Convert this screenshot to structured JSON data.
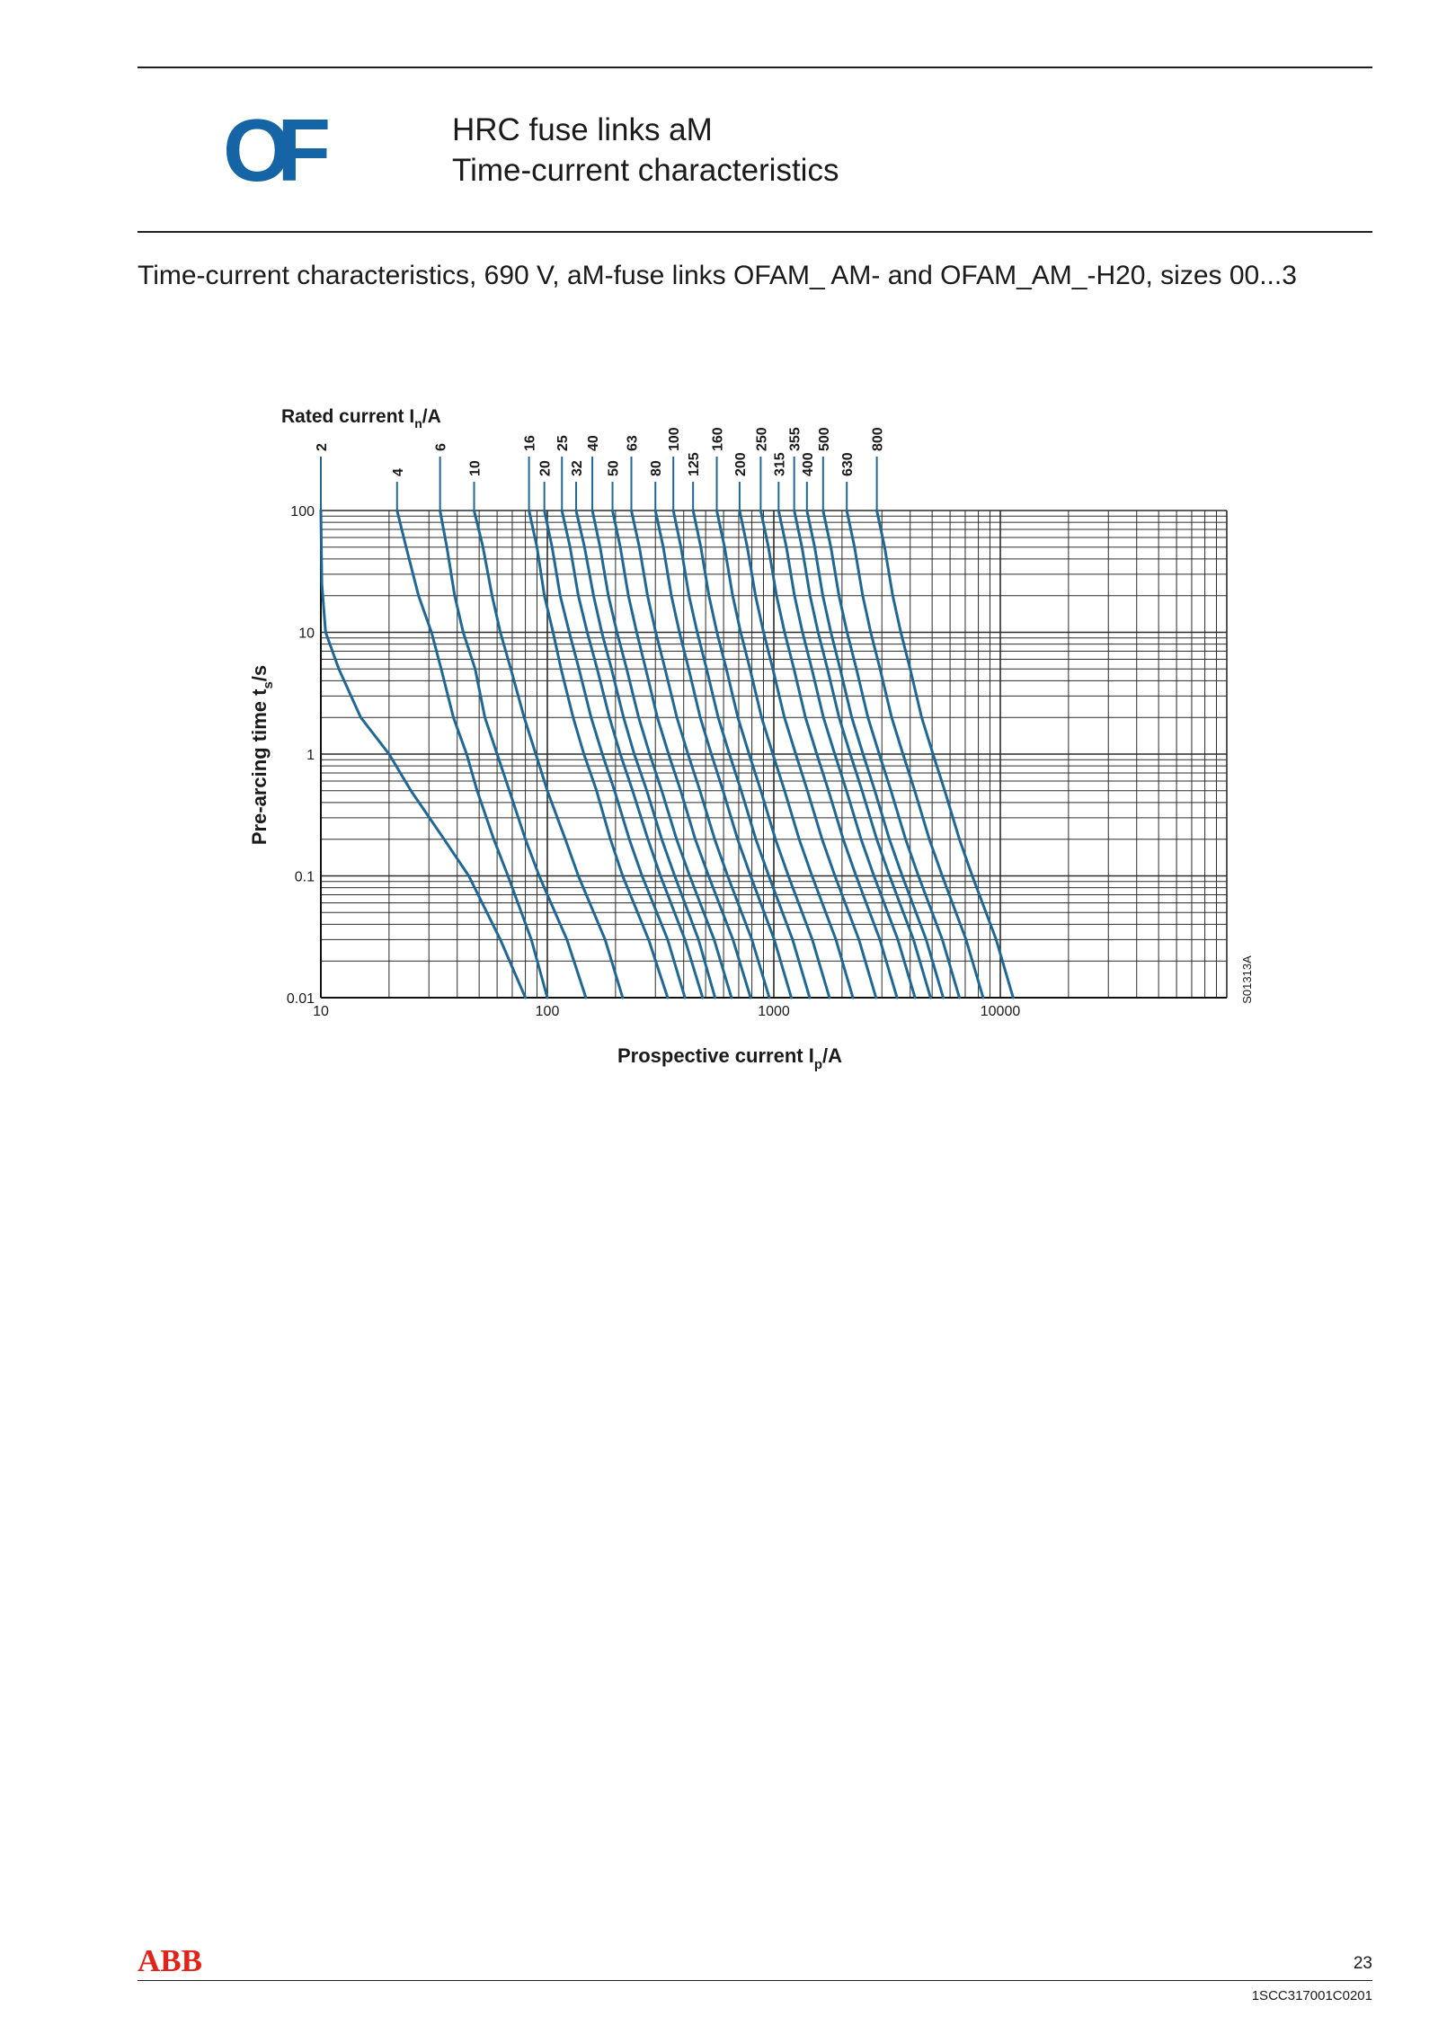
{
  "header": {
    "logo": "OF",
    "title_line1": "HRC fuse links aM",
    "title_line2": "Time-current characteristics"
  },
  "subtitle": "Time-current characteristics, 690 V, aM-fuse links OFAM_ AM- and OFAM_AM_-H20, sizes 00...3",
  "chart_data": {
    "type": "line",
    "rated_label": "Rated current I",
    "rated_label_sub": "n",
    "rated_label_unit": "/A",
    "xlabel": "Prospective current I",
    "xlabel_sub": "p",
    "xlabel_unit": "/A",
    "ylabel": "Pre-arcing time t",
    "ylabel_sub": "s",
    "ylabel_unit": "/s",
    "x_scale": "log",
    "y_scale": "log",
    "xlim": [
      10,
      100000
    ],
    "ylim": [
      0.01,
      100
    ],
    "x_ticks": [
      "10",
      "100",
      "1000",
      "10000"
    ],
    "y_ticks": [
      "100",
      "10",
      "1",
      "0.1",
      "0.01"
    ],
    "grid": true,
    "figure_code": "S01313A",
    "line_color": "#1f6896",
    "grid_color": "#2b2b2b",
    "series": [
      {
        "name": "2",
        "points": [
          [
            10,
            100
          ],
          [
            10.1,
            25
          ],
          [
            10.5,
            10
          ],
          [
            12,
            5
          ],
          [
            15,
            2
          ],
          [
            20,
            1
          ],
          [
            25,
            0.5
          ],
          [
            35,
            0.2
          ],
          [
            45,
            0.1
          ],
          [
            62,
            0.03
          ],
          [
            80,
            0.01
          ]
        ]
      },
      {
        "name": "4",
        "points": [
          [
            21.7,
            100
          ],
          [
            23.8,
            50
          ],
          [
            27,
            20
          ],
          [
            30.8,
            10
          ],
          [
            34,
            5
          ],
          [
            38.5,
            2
          ],
          [
            44,
            1
          ],
          [
            49,
            0.5
          ],
          [
            58,
            0.2
          ],
          [
            67,
            0.1
          ],
          [
            85,
            0.03
          ],
          [
            100,
            0.01
          ]
        ]
      },
      {
        "name": "6",
        "points": [
          [
            33.6,
            100
          ],
          [
            36,
            50
          ],
          [
            39,
            20
          ],
          [
            42.5,
            10
          ],
          [
            48,
            5
          ],
          [
            53,
            2
          ],
          [
            60,
            1
          ],
          [
            68,
            0.5
          ],
          [
            80,
            0.2
          ],
          [
            92,
            0.1
          ],
          [
            122,
            0.03
          ],
          [
            148,
            0.01
          ]
        ]
      },
      {
        "name": "10",
        "points": [
          [
            47.5,
            100
          ],
          [
            52,
            50
          ],
          [
            57,
            20
          ],
          [
            62,
            10
          ],
          [
            69,
            5
          ],
          [
            79,
            2
          ],
          [
            89,
            1
          ],
          [
            100,
            0.5
          ],
          [
            120,
            0.2
          ],
          [
            137,
            0.1
          ],
          [
            180,
            0.03
          ],
          [
            215,
            0.01
          ]
        ]
      },
      {
        "name": "16",
        "points": [
          [
            83,
            100
          ],
          [
            90,
            50
          ],
          [
            97,
            20
          ],
          [
            106,
            10
          ],
          [
            115,
            5
          ],
          [
            130,
            2
          ],
          [
            145,
            1
          ],
          [
            165,
            0.5
          ],
          [
            190,
            0.2
          ],
          [
            215,
            0.1
          ],
          [
            280,
            0.03
          ],
          [
            340,
            0.01
          ]
        ]
      },
      {
        "name": "20",
        "points": [
          [
            97,
            100
          ],
          [
            105,
            50
          ],
          [
            114,
            20
          ],
          [
            125,
            10
          ],
          [
            138,
            5
          ],
          [
            156,
            2
          ],
          [
            175,
            1
          ],
          [
            198,
            0.5
          ],
          [
            230,
            0.2
          ],
          [
            262,
            0.1
          ],
          [
            340,
            0.03
          ],
          [
            405,
            0.01
          ]
        ]
      },
      {
        "name": "25",
        "points": [
          [
            116,
            100
          ],
          [
            126,
            50
          ],
          [
            137,
            20
          ],
          [
            150,
            10
          ],
          [
            166,
            5
          ],
          [
            188,
            2
          ],
          [
            210,
            1
          ],
          [
            238,
            0.5
          ],
          [
            278,
            0.2
          ],
          [
            316,
            0.1
          ],
          [
            405,
            0.03
          ],
          [
            485,
            0.01
          ]
        ]
      },
      {
        "name": "32",
        "points": [
          [
            134,
            100
          ],
          [
            146,
            50
          ],
          [
            160,
            20
          ],
          [
            174,
            10
          ],
          [
            192,
            5
          ],
          [
            217,
            2
          ],
          [
            242,
            1
          ],
          [
            275,
            0.5
          ],
          [
            320,
            0.2
          ],
          [
            365,
            0.1
          ],
          [
            465,
            0.03
          ],
          [
            550,
            0.01
          ]
        ]
      },
      {
        "name": "40",
        "points": [
          [
            158,
            100
          ],
          [
            171,
            50
          ],
          [
            186,
            20
          ],
          [
            203,
            10
          ],
          [
            224,
            5
          ],
          [
            253,
            2
          ],
          [
            283,
            1
          ],
          [
            320,
            0.5
          ],
          [
            372,
            0.2
          ],
          [
            425,
            0.1
          ],
          [
            545,
            0.03
          ],
          [
            650,
            0.01
          ]
        ]
      },
      {
        "name": "50",
        "points": [
          [
            194,
            100
          ],
          [
            210,
            50
          ],
          [
            228,
            20
          ],
          [
            248,
            10
          ],
          [
            272,
            5
          ],
          [
            306,
            2
          ],
          [
            343,
            1
          ],
          [
            388,
            0.5
          ],
          [
            450,
            0.2
          ],
          [
            515,
            0.1
          ],
          [
            660,
            0.03
          ],
          [
            790,
            0.01
          ]
        ]
      },
      {
        "name": "63",
        "points": [
          [
            235,
            100
          ],
          [
            255,
            50
          ],
          [
            277,
            20
          ],
          [
            301,
            10
          ],
          [
            331,
            5
          ],
          [
            373,
            2
          ],
          [
            418,
            1
          ],
          [
            472,
            0.5
          ],
          [
            548,
            0.2
          ],
          [
            625,
            0.1
          ],
          [
            800,
            0.03
          ],
          [
            955,
            0.01
          ]
        ]
      },
      {
        "name": "80",
        "points": [
          [
            300,
            100
          ],
          [
            325,
            50
          ],
          [
            353,
            20
          ],
          [
            383,
            10
          ],
          [
            421,
            5
          ],
          [
            473,
            2
          ],
          [
            530,
            1
          ],
          [
            597,
            0.5
          ],
          [
            692,
            0.2
          ],
          [
            790,
            0.1
          ],
          [
            1005,
            0.03
          ],
          [
            1195,
            0.01
          ]
        ]
      },
      {
        "name": "100",
        "points": [
          [
            360,
            100
          ],
          [
            389,
            50
          ],
          [
            422,
            20
          ],
          [
            459,
            10
          ],
          [
            505,
            5
          ],
          [
            568,
            2
          ],
          [
            637,
            1
          ],
          [
            718,
            0.5
          ],
          [
            833,
            0.2
          ],
          [
            950,
            0.1
          ],
          [
            1210,
            0.03
          ],
          [
            1440,
            0.01
          ]
        ]
      },
      {
        "name": "125",
        "points": [
          [
            440,
            100
          ],
          [
            476,
            50
          ],
          [
            517,
            20
          ],
          [
            561,
            10
          ],
          [
            617,
            5
          ],
          [
            694,
            2
          ],
          [
            778,
            1
          ],
          [
            877,
            0.5
          ],
          [
            1017,
            0.2
          ],
          [
            1160,
            0.1
          ],
          [
            1478,
            0.03
          ],
          [
            1760,
            0.01
          ]
        ]
      },
      {
        "name": "160",
        "points": [
          [
            560,
            100
          ],
          [
            606,
            50
          ],
          [
            658,
            20
          ],
          [
            714,
            10
          ],
          [
            785,
            5
          ],
          [
            883,
            2
          ],
          [
            990,
            1
          ],
          [
            1116,
            0.5
          ],
          [
            1294,
            0.2
          ],
          [
            1475,
            0.1
          ],
          [
            1880,
            0.03
          ],
          [
            2235,
            0.01
          ]
        ]
      },
      {
        "name": "200",
        "points": [
          [
            706,
            100
          ],
          [
            764,
            50
          ],
          [
            830,
            20
          ],
          [
            901,
            10
          ],
          [
            990,
            5
          ],
          [
            1114,
            2
          ],
          [
            1250,
            1
          ],
          [
            1408,
            0.5
          ],
          [
            1633,
            0.2
          ],
          [
            1862,
            0.1
          ],
          [
            2375,
            0.03
          ],
          [
            2825,
            0.01
          ]
        ]
      },
      {
        "name": "250",
        "points": [
          [
            875,
            100
          ],
          [
            947,
            50
          ],
          [
            1028,
            20
          ],
          [
            1116,
            10
          ],
          [
            1227,
            5
          ],
          [
            1380,
            2
          ],
          [
            1548,
            1
          ],
          [
            1745,
            0.5
          ],
          [
            2024,
            0.2
          ],
          [
            2307,
            0.1
          ],
          [
            2940,
            0.03
          ],
          [
            3500,
            0.01
          ]
        ]
      },
      {
        "name": "315",
        "points": [
          [
            1050,
            100
          ],
          [
            1136,
            50
          ],
          [
            1234,
            20
          ],
          [
            1339,
            10
          ],
          [
            1472,
            5
          ],
          [
            1656,
            2
          ],
          [
            1858,
            1
          ],
          [
            2094,
            0.5
          ],
          [
            2429,
            0.2
          ],
          [
            2768,
            0.1
          ],
          [
            3530,
            0.03
          ],
          [
            4200,
            0.01
          ]
        ]
      },
      {
        "name": "355",
        "points": [
          [
            1230,
            100
          ],
          [
            1331,
            50
          ],
          [
            1445,
            20
          ],
          [
            1569,
            10
          ],
          [
            1725,
            5
          ],
          [
            1941,
            2
          ],
          [
            2177,
            1
          ],
          [
            2453,
            0.5
          ],
          [
            2846,
            0.2
          ],
          [
            3244,
            0.1
          ],
          [
            4135,
            0.03
          ],
          [
            4920,
            0.01
          ]
        ]
      },
      {
        "name": "400",
        "points": [
          [
            1400,
            100
          ],
          [
            1515,
            50
          ],
          [
            1645,
            20
          ],
          [
            1786,
            10
          ],
          [
            1963,
            5
          ],
          [
            2208,
            2
          ],
          [
            2477,
            1
          ],
          [
            2792,
            0.5
          ],
          [
            3238,
            0.2
          ],
          [
            3692,
            0.1
          ],
          [
            4705,
            0.03
          ],
          [
            5600,
            0.01
          ]
        ]
      },
      {
        "name": "500",
        "points": [
          [
            1650,
            100
          ],
          [
            1786,
            50
          ],
          [
            1939,
            20
          ],
          [
            2105,
            10
          ],
          [
            2315,
            5
          ],
          [
            2603,
            2
          ],
          [
            2920,
            1
          ],
          [
            3291,
            0.5
          ],
          [
            3817,
            0.2
          ],
          [
            4352,
            0.1
          ],
          [
            5547,
            0.03
          ],
          [
            6600,
            0.01
          ]
        ]
      },
      {
        "name": "630",
        "points": [
          [
            2100,
            100
          ],
          [
            2272,
            50
          ],
          [
            2468,
            20
          ],
          [
            2679,
            10
          ],
          [
            2946,
            5
          ],
          [
            3313,
            2
          ],
          [
            3717,
            1
          ],
          [
            4190,
            0.5
          ],
          [
            4860,
            0.2
          ],
          [
            5540,
            0.1
          ],
          [
            7060,
            0.03
          ],
          [
            8400,
            0.01
          ]
        ]
      },
      {
        "name": "800",
        "points": [
          [
            2850,
            100
          ],
          [
            3084,
            50
          ],
          [
            3350,
            20
          ],
          [
            3636,
            10
          ],
          [
            3998,
            5
          ],
          [
            4497,
            2
          ],
          [
            5045,
            1
          ],
          [
            5687,
            0.5
          ],
          [
            6596,
            0.2
          ],
          [
            7520,
            0.1
          ],
          [
            9585,
            0.03
          ],
          [
            11400,
            0.01
          ]
        ]
      }
    ]
  },
  "footer": {
    "brand": "ABB",
    "page_number": "23",
    "doc_code": "1SCC317001C0201"
  }
}
